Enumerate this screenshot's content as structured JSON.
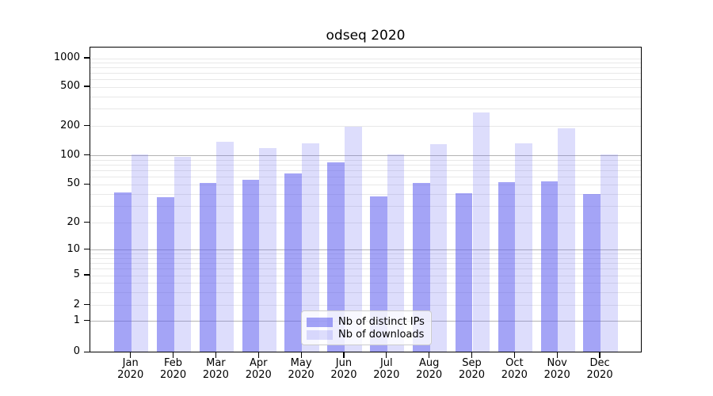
{
  "title": "odseq 2020",
  "chart_data": {
    "type": "bar",
    "title": "odseq 2020",
    "categories": [
      "Jan",
      "Feb",
      "Mar",
      "Apr",
      "May",
      "Jun",
      "Jul",
      "Aug",
      "Sep",
      "Oct",
      "Nov",
      "Dec"
    ],
    "category_year": "2020",
    "series": [
      {
        "name": "Nb of distinct IPs",
        "color_key": "bar_dark",
        "values": [
          41,
          36,
          51,
          55,
          64,
          83,
          37,
          51,
          40,
          52,
          53,
          39
        ]
      },
      {
        "name": "Nb of downloads",
        "color_key": "bar_light",
        "values": [
          100,
          95,
          135,
          117,
          131,
          193,
          101,
          129,
          270,
          132,
          187,
          101
        ]
      }
    ],
    "xlabel": "",
    "ylabel": "",
    "yscale": "symlog",
    "ylim": [
      0,
      1400
    ],
    "yticks": [
      0,
      1,
      2,
      5,
      10,
      20,
      50,
      100,
      200,
      500,
      1000
    ],
    "major_grid_values": [
      1,
      10,
      100
    ],
    "minor_grid_values": [
      2,
      3,
      4,
      5,
      6,
      7,
      8,
      9,
      20,
      30,
      40,
      50,
      60,
      70,
      80,
      90,
      200,
      300,
      400,
      500,
      600,
      700,
      800,
      900,
      1000
    ],
    "grid": true,
    "legend_position": "lower center"
  },
  "legend": {
    "items": [
      {
        "label": "Nb of distinct IPs"
      },
      {
        "label": "Nb of downloads"
      }
    ]
  },
  "colors": {
    "bar_dark": "rgba(99,99,240,0.58)",
    "bar_light": "rgba(99,99,240,0.22)",
    "bar_dark_hex": "#a4a4f3",
    "bar_light_hex": "#dadaf8",
    "major_grid": "#b4b4b4",
    "minor_grid": "#e8e8e8",
    "axis": "#000000",
    "text": "#000000",
    "legend_border": "#cccccc"
  }
}
